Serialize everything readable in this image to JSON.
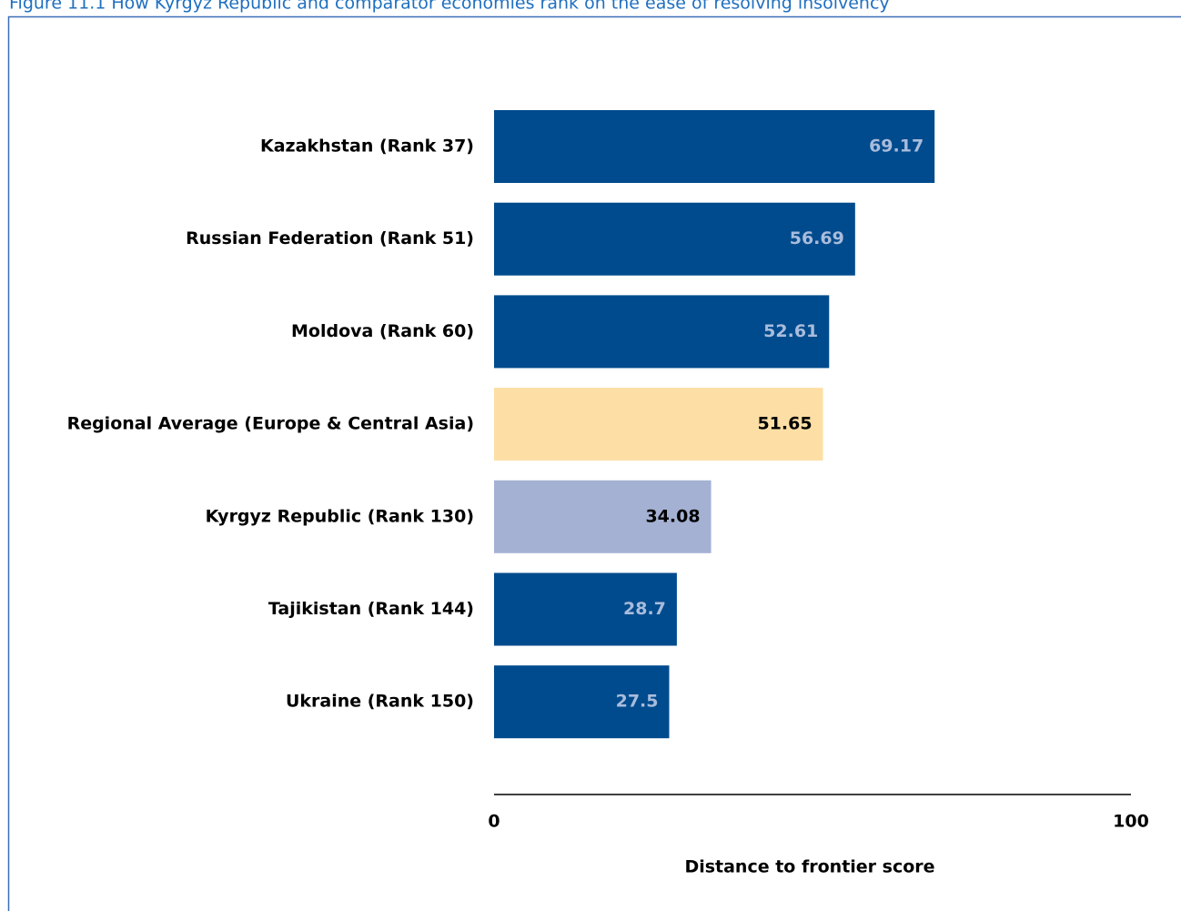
{
  "chart_data": {
    "type": "bar",
    "orientation": "horizontal",
    "title": "Figure 11.1 How Kyrgyz Republic and comparator economies rank on the ease of resolving insolvency",
    "categories": [
      "Kazakhstan (Rank 37)",
      "Russian Federation (Rank 51)",
      "Moldova (Rank 60)",
      "Regional Average (Europe & Central Asia)",
      "Kyrgyz Republic (Rank 130)",
      "Tajikistan (Rank 144)",
      "Ukraine (Rank 150)"
    ],
    "values": [
      69.17,
      56.69,
      52.61,
      51.65,
      34.08,
      28.7,
      27.5
    ],
    "colors": [
      "#004b8d",
      "#004b8d",
      "#004b8d",
      "#fddfa6",
      "#a4b1d3",
      "#004b8d",
      "#004b8d"
    ],
    "label_colors": [
      "#a9bcdc",
      "#a9bcdc",
      "#a9bcdc",
      "#000000",
      "#000000",
      "#a9bcdc",
      "#a9bcdc"
    ],
    "xlabel": "Distance to frontier score",
    "xlim": [
      0,
      100
    ],
    "xticks": [
      0,
      100
    ],
    "grid": false
  }
}
